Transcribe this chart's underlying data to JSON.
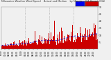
{
  "background_color": "#f0f0f0",
  "plot_bg_color": "#f0f0f0",
  "bar_color": "#cc0000",
  "median_color": "#0000cc",
  "n_points": 1440,
  "y_min": 0,
  "y_max": 30,
  "yticks": [
    5,
    10,
    15,
    20,
    25,
    30
  ],
  "grid_color": "#aaaaaa",
  "title_fontsize": 2.5,
  "axis_fontsize": 2.2,
  "legend_blue_color": "#0000ee",
  "legend_red_color": "#cc0000",
  "vline_color": "#999999",
  "vline_positions": [
    360,
    720,
    1080
  ]
}
